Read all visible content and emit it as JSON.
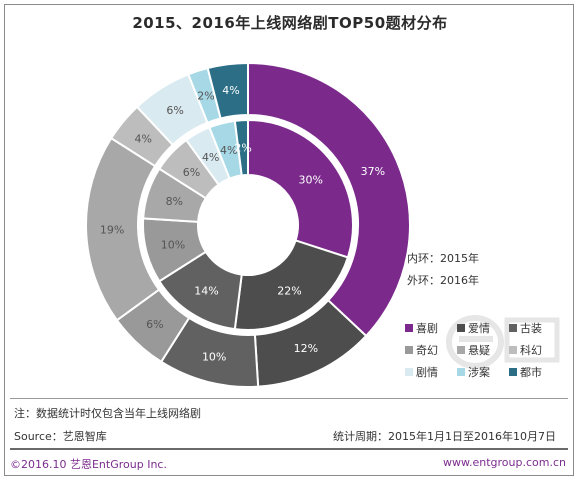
{
  "title": "2015、2016年上线网络剧TOP50题材分布",
  "ring_key": {
    "inner": "内环：2015年",
    "outer": "外环：2016年"
  },
  "note": "注：数据统计时仅包含当年上线网络剧",
  "source": "Source：艺恩智库",
  "period": "统计周期：2015年1月1日至2016年10月7日",
  "copyright": "©2016.10  艺恩EntGroup Inc.",
  "website": "www.entgroup.com.cn",
  "colors": {
    "喜剧": "#7b2a8c",
    "爱情": "#4d4d4d",
    "古装": "#616161",
    "奇幻": "#999999",
    "悬疑": "#a8a8a8",
    "科幻": "#bdbdbd",
    "剧情": "#daeaf1",
    "涉案": "#a6d8e6",
    "都市": "#2b6e86"
  },
  "chart_data": {
    "type": "pie",
    "subtype": "double-donut",
    "title": "2015、2016年上线网络剧TOP50题材分布",
    "unit": "%",
    "categories": [
      "喜剧",
      "爱情",
      "古装",
      "奇幻",
      "悬疑",
      "科幻",
      "剧情",
      "涉案",
      "都市"
    ],
    "series": [
      {
        "name": "2015年",
        "ring": "inner",
        "values": [
          30,
          22,
          14,
          10,
          8,
          6,
          4,
          4,
          2
        ]
      },
      {
        "name": "2016年",
        "ring": "outer",
        "values": [
          37,
          12,
          10,
          6,
          19,
          4,
          6,
          2,
          4
        ]
      }
    ],
    "legend": {
      "position": "right",
      "entries": [
        "喜剧",
        "爱情",
        "古装",
        "奇幻",
        "悬疑",
        "科幻",
        "剧情",
        "涉案",
        "都市"
      ]
    }
  }
}
